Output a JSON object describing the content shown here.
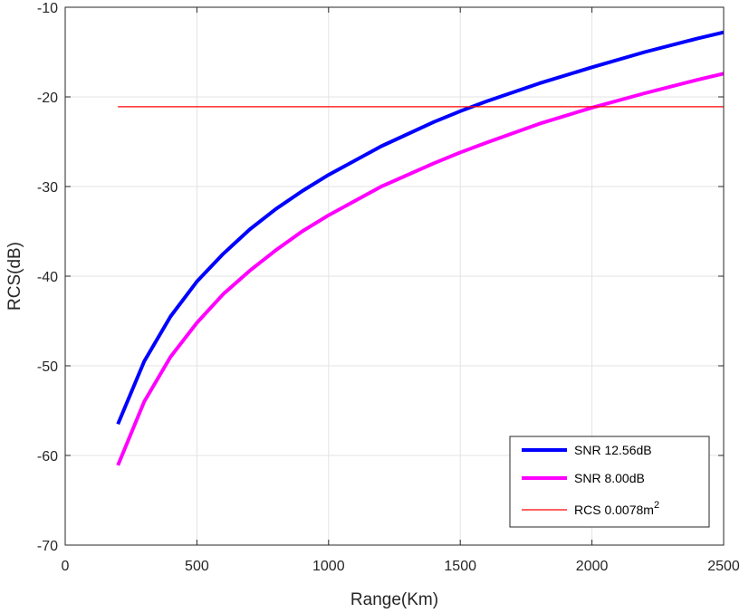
{
  "chart_data": {
    "type": "line",
    "xlabel": "Range(Km)",
    "ylabel": "RCS(dB)",
    "xlim": [
      0,
      2500
    ],
    "ylim": [
      -70,
      -10
    ],
    "xticks": [
      0,
      500,
      1000,
      1500,
      2000,
      2500
    ],
    "yticks": [
      -70,
      -60,
      -50,
      -40,
      -30,
      -20,
      -10
    ],
    "xtick_labels": [
      "0",
      "500",
      "1000",
      "1500",
      "2000",
      "2500"
    ],
    "ytick_labels": [
      "-70",
      "-60",
      "-50",
      "-40",
      "-30",
      "-20",
      "-10"
    ],
    "grid": true,
    "legend_placement": "bottom-right",
    "series": [
      {
        "name": "SNR 12.56dB",
        "color": "#0000ff",
        "style": "thick",
        "x": [
          200,
          300,
          400,
          500,
          600,
          700,
          800,
          900,
          1000,
          1200,
          1400,
          1500,
          1600,
          1800,
          2000,
          2200,
          2400,
          2500
        ],
        "y": [
          -56.5,
          -49.5,
          -44.5,
          -40.6,
          -37.5,
          -34.8,
          -32.5,
          -30.5,
          -28.7,
          -25.5,
          -22.8,
          -21.6,
          -20.5,
          -18.5,
          -16.7,
          -15.0,
          -13.5,
          -12.8
        ]
      },
      {
        "name": "SNR 8.00dB",
        "color": "#ff00ff",
        "style": "thick",
        "x": [
          200,
          300,
          400,
          500,
          600,
          700,
          800,
          900,
          1000,
          1200,
          1400,
          1500,
          1600,
          1800,
          2000,
          2200,
          2400,
          2500
        ],
        "y": [
          -61.1,
          -54.0,
          -49.0,
          -45.2,
          -42.0,
          -39.4,
          -37.1,
          -35.0,
          -33.2,
          -30.0,
          -27.4,
          -26.2,
          -25.1,
          -23.0,
          -21.2,
          -19.6,
          -18.1,
          -17.4
        ]
      },
      {
        "name_prefix": "RCS 0.0078m",
        "name_superscript": "2",
        "color": "#ff0000",
        "style": "thin",
        "x": [
          200,
          2500
        ],
        "y": [
          -21.1,
          -21.1
        ]
      }
    ]
  }
}
